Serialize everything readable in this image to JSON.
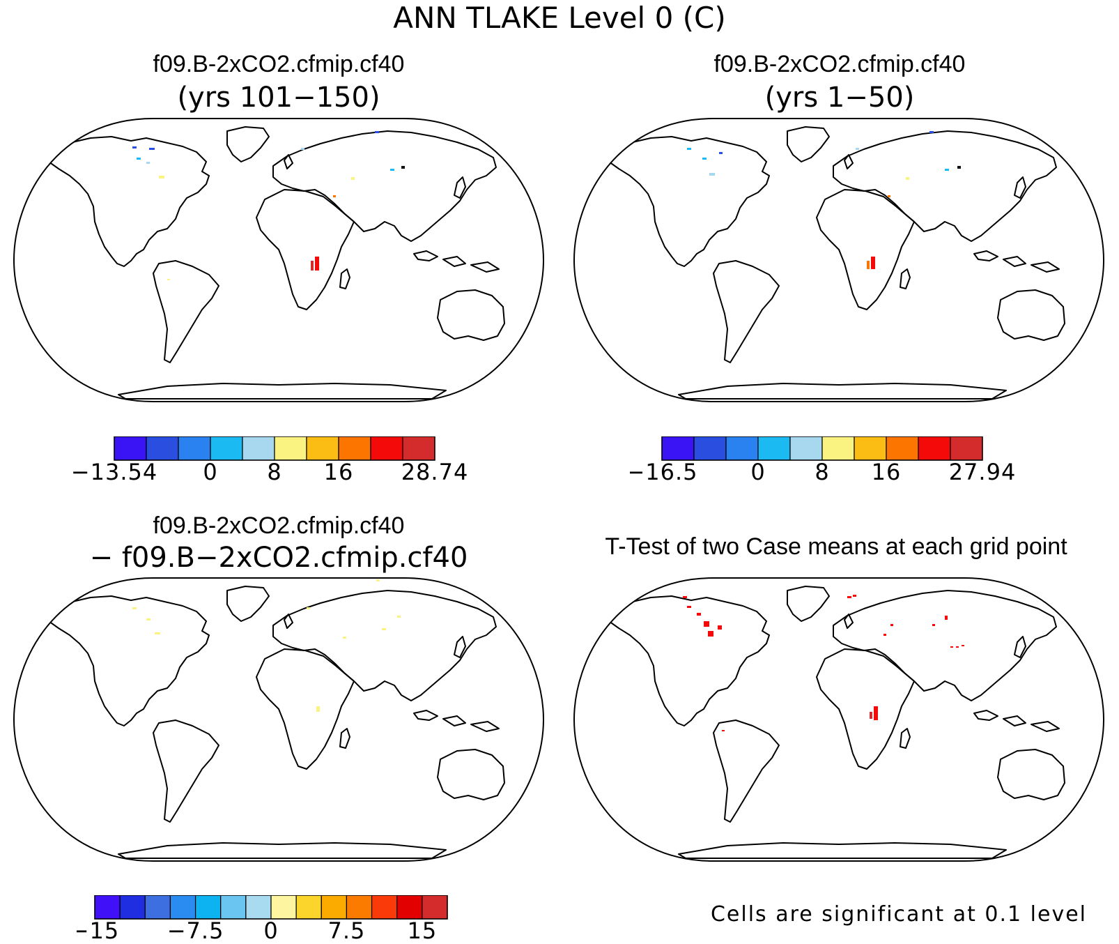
{
  "figure": {
    "title": "ANN TLAKE Level 0 (C)"
  },
  "panels": [
    {
      "id": "top-left",
      "title": "f09.B-2xCO2.cfmip.cf40",
      "subtitle": "(yrs 101−150)",
      "colorbar": {
        "colors": [
          "#3b14f5",
          "#2a4fe0",
          "#2a82f0",
          "#1cbaf2",
          "#a8d8f0",
          "#fbf381",
          "#fbbd14",
          "#fb7500",
          "#f50a0a",
          "#d42c2c"
        ],
        "labels": [
          "−13.54",
          "0",
          "8",
          "16",
          "28.74"
        ]
      }
    },
    {
      "id": "top-right",
      "title": "f09.B-2xCO2.cfmip.cf40",
      "subtitle": "(yrs 1−50)",
      "colorbar": {
        "colors": [
          "#3b14f5",
          "#2a4fe0",
          "#2a82f0",
          "#1cbaf2",
          "#a8d8f0",
          "#fbf381",
          "#fbbd14",
          "#fb7500",
          "#f50a0a",
          "#d42c2c"
        ],
        "labels": [
          "−16.5",
          "0",
          "8",
          "16",
          "27.94"
        ]
      }
    },
    {
      "id": "bottom-left",
      "title": "f09.B-2xCO2.cfmip.cf40",
      "subtitle": "− f09.B−2xCO2.cfmip.cf40",
      "colorbar": {
        "colors": [
          "#3f10f8",
          "#1f2ee0",
          "#3d6fe0",
          "#2a8cf0",
          "#0cb3f0",
          "#6ac6f0",
          "#a8daf0",
          "#fdf5a0",
          "#fbd42c",
          "#fbaa00",
          "#fb7b00",
          "#fb3a0a",
          "#e20000",
          "#d42c2c"
        ],
        "labels": [
          "−15",
          "−7.5",
          "0",
          "7.5",
          "15"
        ]
      }
    },
    {
      "id": "bottom-right",
      "title": "T-Test of two Case means at each grid point",
      "note": "Cells are significant at 0.1 level"
    }
  ]
}
